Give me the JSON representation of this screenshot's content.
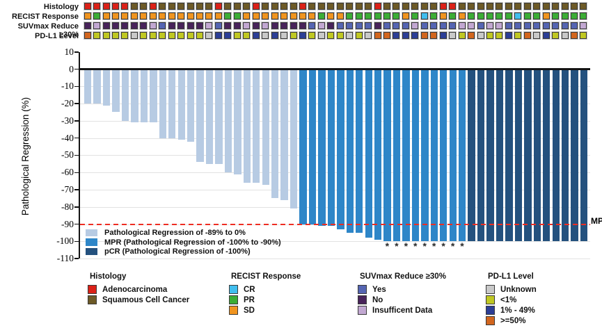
{
  "tracks": {
    "rows": [
      {
        "label": "Histology",
        "values": [
          "adeno",
          "adeno",
          "adeno",
          "adeno",
          "adeno",
          "squam",
          "squam",
          "adeno",
          "squam",
          "squam",
          "squam",
          "squam",
          "squam",
          "squam",
          "adeno",
          "squam",
          "squam",
          "squam",
          "adeno",
          "squam",
          "squam",
          "squam",
          "squam",
          "adeno",
          "squam",
          "squam",
          "squam",
          "squam",
          "squam",
          "squam",
          "squam",
          "adeno",
          "squam",
          "squam",
          "squam",
          "squam",
          "squam",
          "squam",
          "adeno",
          "adeno",
          "squam",
          "squam",
          "squam",
          "squam",
          "squam",
          "squam",
          "squam",
          "squam",
          "squam",
          "squam",
          "squam",
          "squam",
          "squam",
          "squam"
        ]
      },
      {
        "label": "RECIST Response",
        "values": [
          "SD",
          "PR",
          "SD",
          "SD",
          "SD",
          "SD",
          "SD",
          "SD",
          "SD",
          "SD",
          "SD",
          "SD",
          "SD",
          "SD",
          "SD",
          "PR",
          "PR",
          "SD",
          "SD",
          "SD",
          "SD",
          "SD",
          "SD",
          "SD",
          "SD",
          "PR",
          "SD",
          "SD",
          "PR",
          "PR",
          "PR",
          "PR",
          "PR",
          "PR",
          "SD",
          "PR",
          "CR",
          "PR",
          "SD",
          "PR",
          "SD",
          "PR",
          "PR",
          "PR",
          "PR",
          "PR",
          "CR",
          "PR",
          "PR",
          "SD",
          "PR",
          "PR",
          "PR",
          "PR"
        ]
      },
      {
        "label": "SUVmax Reduce ≥30%",
        "values": [
          "no",
          "insuff",
          "no",
          "no",
          "no",
          "no",
          "no",
          "insuff",
          "yes",
          "no",
          "no",
          "no",
          "no",
          "insuff",
          "yes",
          "no",
          "no",
          "insuff",
          "no",
          "insuff",
          "no",
          "no",
          "no",
          "no",
          "yes",
          "insuff",
          "no",
          "yes",
          "yes",
          "yes",
          "yes",
          "no",
          "yes",
          "yes",
          "yes",
          "insuff",
          "yes",
          "yes",
          "yes",
          "yes",
          "insuff",
          "insuff",
          "yes",
          "insuff",
          "insuff",
          "yes",
          "yes",
          "yes",
          "yes",
          "yes",
          "yes",
          "yes",
          "yes",
          "insuff"
        ]
      },
      {
        "label": "PD-L1 Level",
        "values": [
          "ge50",
          "lt1",
          "lt1",
          "lt1",
          "lt1",
          "unknown",
          "lt1",
          "lt1",
          "lt1",
          "lt1",
          "lt1",
          "lt1",
          "lt1",
          "unknown",
          "p1to49",
          "p1to49",
          "lt1",
          "lt1",
          "p1to49",
          "unknown",
          "p1to49",
          "unknown",
          "lt1",
          "p1to49",
          "lt1",
          "unknown",
          "lt1",
          "lt1",
          "unknown",
          "lt1",
          "unknown",
          "ge50",
          "ge50",
          "p1to49",
          "p1to49",
          "p1to49",
          "ge50",
          "ge50",
          "p1to49",
          "unknown",
          "lt1",
          "ge50",
          "unknown",
          "lt1",
          "lt1",
          "p1to49",
          "lt1",
          "ge50",
          "unknown",
          "p1to49",
          "lt1",
          "unknown",
          "ge50",
          "lt1"
        ]
      }
    ],
    "palette": {
      "adeno": "#DB2118",
      "squam": "#6D5A27",
      "SD": "#F0941F",
      "PR": "#3CAD35",
      "CR": "#41BEEE",
      "yes": "#5565B2",
      "no": "#48235A",
      "insuff": "#C2A8D2",
      "unknown": "#C9C9C9",
      "lt1": "#C0C822",
      "p1to49": "#2C3E96",
      "ge50": "#D2661E"
    }
  },
  "chart_data": {
    "type": "bar",
    "title": "",
    "ylabel": "Pathological Regression (%)",
    "ylim": [
      10,
      -110
    ],
    "yticks": [
      10,
      0,
      -10,
      -20,
      -30,
      -40,
      -50,
      -60,
      -70,
      -80,
      -90,
      -100,
      -110
    ],
    "grid": "horizontal",
    "values": [
      -20,
      -20,
      -21,
      -25,
      -30,
      -31,
      -31,
      -31,
      -40,
      -40,
      -41,
      -42,
      -54,
      -55,
      -55,
      -60,
      -61,
      -66,
      -66,
      -67,
      -75,
      -76,
      -81,
      -90,
      -90,
      -91,
      -91,
      -93,
      -95,
      -95,
      -98,
      -99,
      -100,
      -100,
      -100,
      -100,
      -100,
      -100,
      -100,
      -100,
      -100,
      -100,
      -100,
      -100,
      -100,
      -100,
      -100,
      -100,
      -100,
      -100,
      -100,
      -100,
      -100,
      -100
    ],
    "bar_classes": [
      "reg",
      "reg",
      "reg",
      "reg",
      "reg",
      "reg",
      "reg",
      "reg",
      "reg",
      "reg",
      "reg",
      "reg",
      "reg",
      "reg",
      "reg",
      "reg",
      "reg",
      "reg",
      "reg",
      "reg",
      "reg",
      "reg",
      "reg",
      "mpr",
      "mpr",
      "mpr",
      "mpr",
      "mpr",
      "mpr",
      "mpr",
      "mpr",
      "mpr",
      "mpr",
      "mpr",
      "mpr",
      "mpr",
      "mpr",
      "mpr",
      "mpr",
      "mpr",
      "mpr",
      "pcr",
      "pcr",
      "pcr",
      "pcr",
      "pcr",
      "pcr",
      "pcr",
      "pcr",
      "pcr",
      "pcr",
      "pcr",
      "pcr",
      "pcr"
    ],
    "class_colors": {
      "reg": "#B7CBE3",
      "mpr": "#2E86C8",
      "pcr": "#24517E"
    },
    "reference_line": {
      "value": -90,
      "label": "MPR",
      "color": "#EE2D22",
      "style": "dashed"
    },
    "asterisk_bar_indices": [
      33,
      34,
      35,
      36,
      37,
      38,
      39,
      40,
      41
    ],
    "asterisk_symbol": "*",
    "legend": [
      {
        "class": "reg",
        "label": "Pathological Regression of -89% to 0%"
      },
      {
        "class": "mpr",
        "label": "MPR (Pathological Regression of -100% to -90%)"
      },
      {
        "class": "pcr",
        "label": "pCR (Pathological Regression of -100%)"
      }
    ]
  },
  "bottom_legend": {
    "groups": [
      {
        "title": "Histology",
        "items": [
          {
            "key": "adeno",
            "label": "Adenocarcinoma"
          },
          {
            "key": "squam",
            "label": "Squamous Cell Cancer"
          }
        ]
      },
      {
        "title": "RECIST Response",
        "items": [
          {
            "key": "CR",
            "label": "CR"
          },
          {
            "key": "PR",
            "label": "PR"
          },
          {
            "key": "SD",
            "label": "SD"
          }
        ]
      },
      {
        "title": "SUVmax Reduce ≥30%",
        "items": [
          {
            "key": "yes",
            "label": "Yes"
          },
          {
            "key": "no",
            "label": "No"
          },
          {
            "key": "insuff",
            "label": "Insufficent Data"
          }
        ]
      },
      {
        "title": "PD-L1 Level",
        "items": [
          {
            "key": "unknown",
            "label": "Unknown"
          },
          {
            "key": "lt1",
            "label": "<1%"
          },
          {
            "key": "p1to49",
            "label": "1% - 49%"
          },
          {
            "key": "ge50",
            "label": ">=50%"
          }
        ]
      }
    ]
  }
}
